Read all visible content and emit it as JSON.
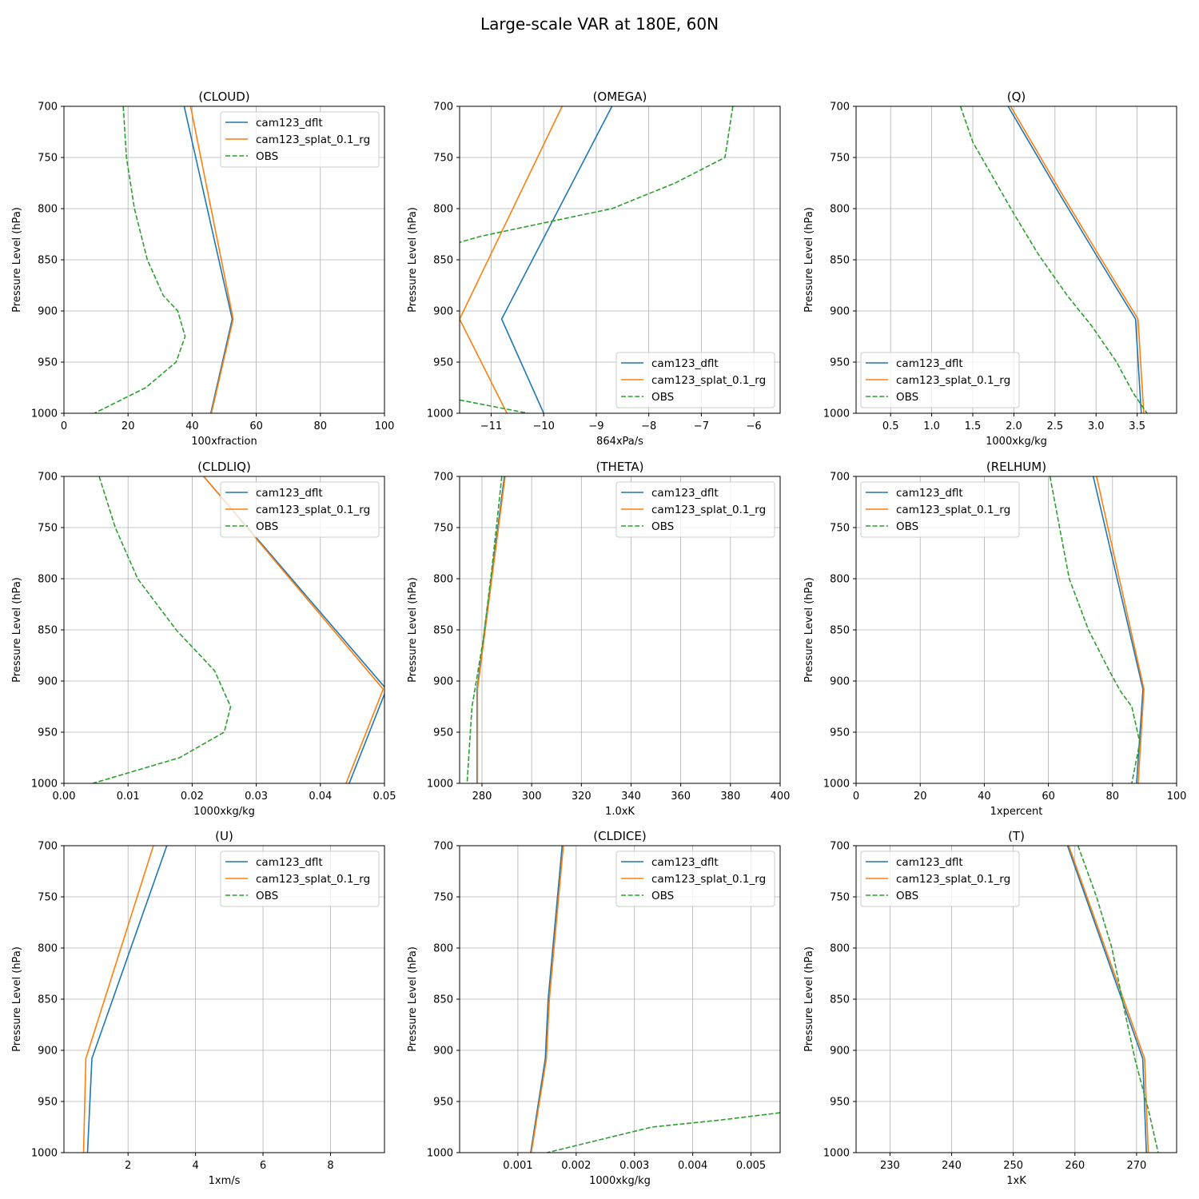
{
  "figure": {
    "title": "Large-scale VAR at 180E, 60N"
  },
  "colors": {
    "series0": "#1f77b4",
    "series1": "#ff7f0e",
    "series2": "#2ca02c",
    "grid": "#b0b0b0"
  },
  "chart_data": [
    {
      "type": "line",
      "title": "(CLOUD)",
      "xlabel": "100xfraction",
      "ylabel": "Pressure Level (hPa)",
      "xlim": [
        0,
        100
      ],
      "ylim": [
        1000,
        700
      ],
      "grid": true,
      "legend": "top-right",
      "xticks": [
        0,
        20,
        40,
        60,
        80,
        100
      ],
      "xtick_labels": [
        "0",
        "20",
        "40",
        "60",
        "80",
        "100"
      ],
      "yticks": [
        700,
        750,
        800,
        850,
        900,
        950,
        1000
      ],
      "ytick_labels": [
        "700",
        "750",
        "800",
        "850",
        "900",
        "950",
        "1000"
      ],
      "series": [
        {
          "name": "cam123_dflt",
          "style": "solid",
          "points": [
            [
              37.5,
              700
            ],
            [
              52.5,
              908
            ],
            [
              45.8,
              1000
            ]
          ]
        },
        {
          "name": "cam123_splat_0.1_rg",
          "style": "solid",
          "points": [
            [
              39.5,
              700
            ],
            [
              52.8,
              908
            ],
            [
              46.0,
              1000
            ]
          ]
        },
        {
          "name": "OBS",
          "style": "dashed",
          "points": [
            [
              18.5,
              700
            ],
            [
              19.5,
              750
            ],
            [
              22,
              800
            ],
            [
              26,
              850
            ],
            [
              31,
              885
            ],
            [
              35.5,
              900
            ],
            [
              37.8,
              925
            ],
            [
              35,
              950
            ],
            [
              25.5,
              975
            ],
            [
              9.5,
              1000
            ]
          ]
        }
      ]
    },
    {
      "type": "line",
      "title": "(OMEGA)",
      "xlabel": "864xPa/s",
      "ylabel": "Pressure Level (hPa)",
      "xlim": [
        -11.6,
        -5.5
      ],
      "ylim": [
        1000,
        700
      ],
      "grid": true,
      "legend": "bottom-right",
      "xticks": [
        -11,
        -10,
        -9,
        -8,
        -7,
        -6
      ],
      "xtick_labels": [
        "−11",
        "−10",
        "−9",
        "−8",
        "−7",
        "−6"
      ],
      "yticks": [
        700,
        750,
        800,
        850,
        900,
        950,
        1000
      ],
      "ytick_labels": [
        "700",
        "750",
        "800",
        "850",
        "900",
        "950",
        "1000"
      ],
      "series": [
        {
          "name": "cam123_dflt",
          "style": "solid",
          "points": [
            [
              -8.7,
              700
            ],
            [
              -10.8,
              908
            ],
            [
              -10.0,
              1000
            ]
          ]
        },
        {
          "name": "cam123_splat_0.1_rg",
          "style": "solid",
          "points": [
            [
              -9.65,
              700
            ],
            [
              -11.6,
              908
            ],
            [
              -10.7,
              1000
            ]
          ]
        },
        {
          "name": "OBS",
          "style": "dashed",
          "points": [
            [
              -6.4,
              700
            ],
            [
              -6.55,
              750
            ],
            [
              -7.5,
              775
            ],
            [
              -8.7,
              800
            ],
            [
              -10.0,
              814
            ],
            [
              -11.2,
              827
            ],
            [
              -11.6,
              833
            ]
          ]
        },
        {
          "name": "OBS",
          "style": "dashed",
          "points": [
            [
              -11.6,
              987
            ],
            [
              -10.3,
              1000
            ]
          ]
        }
      ]
    },
    {
      "type": "line",
      "title": "(Q)",
      "xlabel": "1000xkg/kg",
      "ylabel": "Pressure Level (hPa)",
      "xlim": [
        0.08,
        3.98
      ],
      "ylim": [
        1000,
        700
      ],
      "grid": true,
      "legend": "bottom-left",
      "xticks": [
        0.5,
        1.0,
        1.5,
        2.0,
        2.5,
        3.0,
        3.5
      ],
      "xtick_labels": [
        "0.5",
        "1.0",
        "1.5",
        "2.0",
        "2.5",
        "3.0",
        "3.5"
      ],
      "yticks": [
        700,
        750,
        800,
        850,
        900,
        950,
        1000
      ],
      "ytick_labels": [
        "700",
        "750",
        "800",
        "850",
        "900",
        "950",
        "1000"
      ],
      "series": [
        {
          "name": "cam123_dflt",
          "style": "solid",
          "points": [
            [
              1.93,
              700
            ],
            [
              2.55,
              785
            ],
            [
              3.0,
              845
            ],
            [
              3.48,
              908
            ],
            [
              3.55,
              1000
            ]
          ]
        },
        {
          "name": "cam123_splat_0.1_rg",
          "style": "solid",
          "points": [
            [
              1.96,
              700
            ],
            [
              2.58,
              785
            ],
            [
              3.03,
              845
            ],
            [
              3.51,
              908
            ],
            [
              3.58,
              1000
            ]
          ]
        },
        {
          "name": "OBS",
          "style": "dashed",
          "points": [
            [
              1.35,
              700
            ],
            [
              1.5,
              735
            ],
            [
              1.75,
              770
            ],
            [
              2.0,
              805
            ],
            [
              2.3,
              845
            ],
            [
              2.65,
              885
            ],
            [
              2.95,
              915
            ],
            [
              3.25,
              950
            ],
            [
              3.45,
              980
            ],
            [
              3.62,
              1000
            ]
          ]
        }
      ]
    },
    {
      "type": "line",
      "title": "(CLDLIQ)",
      "xlabel": "1000xkg/kg",
      "ylabel": "Pressure Level (hPa)",
      "xlim": [
        0,
        0.05
      ],
      "ylim": [
        1000,
        700
      ],
      "grid": true,
      "legend": "top-right",
      "xticks": [
        0,
        0.01,
        0.02,
        0.03,
        0.04,
        0.05
      ],
      "xtick_labels": [
        "0.00",
        "0.01",
        "0.02",
        "0.03",
        "0.04",
        "0.05"
      ],
      "yticks": [
        700,
        750,
        800,
        850,
        900,
        950,
        1000
      ],
      "ytick_labels": [
        "700",
        "750",
        "800",
        "850",
        "900",
        "950",
        "1000"
      ],
      "series": [
        {
          "name": "cam123_dflt",
          "style": "solid",
          "points": [
            [
              0.0218,
              700
            ],
            [
              0.0503,
              908
            ],
            [
              0.0445,
              1000
            ]
          ]
        },
        {
          "name": "cam123_splat_0.1_rg",
          "style": "solid",
          "points": [
            [
              0.0218,
              700
            ],
            [
              0.0498,
              908
            ],
            [
              0.044,
              1000
            ]
          ]
        },
        {
          "name": "OBS",
          "style": "dashed",
          "points": [
            [
              0.0055,
              700
            ],
            [
              0.008,
              750
            ],
            [
              0.0115,
              800
            ],
            [
              0.0175,
              850
            ],
            [
              0.0235,
              890
            ],
            [
              0.026,
              925
            ],
            [
              0.025,
              950
            ],
            [
              0.018,
              975
            ],
            [
              0.0045,
              1000
            ]
          ]
        }
      ]
    },
    {
      "type": "line",
      "title": "(THETA)",
      "xlabel": "1.0xK",
      "ylabel": "Pressure Level (hPa)",
      "xlim": [
        271,
        400
      ],
      "ylim": [
        1000,
        700
      ],
      "grid": true,
      "legend": "top-right",
      "xticks": [
        280,
        300,
        320,
        340,
        360,
        380,
        400
      ],
      "xtick_labels": [
        "280",
        "300",
        "320",
        "340",
        "360",
        "380",
        "400"
      ],
      "yticks": [
        700,
        750,
        800,
        850,
        900,
        950,
        1000
      ],
      "ytick_labels": [
        "700",
        "750",
        "800",
        "850",
        "900",
        "950",
        "1000"
      ],
      "series": [
        {
          "name": "cam123_dflt",
          "style": "solid",
          "points": [
            [
              289,
              700
            ],
            [
              278,
              908
            ],
            [
              278,
              1000
            ]
          ]
        },
        {
          "name": "cam123_splat_0.1_rg",
          "style": "solid",
          "points": [
            [
              289.3,
              700
            ],
            [
              278.2,
              908
            ],
            [
              278.2,
              1000
            ]
          ]
        },
        {
          "name": "OBS",
          "style": "dashed",
          "points": [
            [
              288,
              700
            ],
            [
              284,
              790
            ],
            [
              280.5,
              860
            ],
            [
              276,
              925
            ],
            [
              274,
              1000
            ]
          ]
        }
      ]
    },
    {
      "type": "line",
      "title": "(RELHUM)",
      "xlabel": "1xpercent",
      "ylabel": "Pressure Level (hPa)",
      "xlim": [
        0,
        100
      ],
      "ylim": [
        1000,
        700
      ],
      "grid": true,
      "legend": "top-left",
      "xticks": [
        0,
        20,
        40,
        60,
        80,
        100
      ],
      "xtick_labels": [
        "0",
        "20",
        "40",
        "60",
        "80",
        "100"
      ],
      "yticks": [
        700,
        750,
        800,
        850,
        900,
        950,
        1000
      ],
      "ytick_labels": [
        "700",
        "750",
        "800",
        "850",
        "900",
        "950",
        "1000"
      ],
      "series": [
        {
          "name": "cam123_dflt",
          "style": "solid",
          "points": [
            [
              74,
              700
            ],
            [
              89.5,
              908
            ],
            [
              87.5,
              1000
            ]
          ]
        },
        {
          "name": "cam123_splat_0.1_rg",
          "style": "solid",
          "points": [
            [
              75,
              700
            ],
            [
              89.8,
              908
            ],
            [
              88,
              1000
            ]
          ]
        },
        {
          "name": "OBS",
          "style": "dashed",
          "points": [
            [
              60.5,
              700
            ],
            [
              63.5,
              750
            ],
            [
              66.5,
              800
            ],
            [
              72.5,
              850
            ],
            [
              79,
              890
            ],
            [
              82.5,
              910
            ],
            [
              86,
              925
            ],
            [
              88.5,
              960
            ],
            [
              86,
              1000
            ]
          ]
        }
      ]
    },
    {
      "type": "line",
      "title": "(U)",
      "xlabel": "1xm/s",
      "ylabel": "Pressure Level (hPa)",
      "xlim": [
        0.1,
        9.6
      ],
      "ylim": [
        1000,
        700
      ],
      "grid": true,
      "legend": "top-right",
      "xticks": [
        2,
        4,
        6,
        8
      ],
      "xtick_labels": [
        "2",
        "4",
        "6",
        "8"
      ],
      "yticks": [
        700,
        750,
        800,
        850,
        900,
        950,
        1000
      ],
      "ytick_labels": [
        "700",
        "750",
        "800",
        "850",
        "900",
        "950",
        "1000"
      ],
      "series": [
        {
          "name": "cam123_dflt",
          "style": "solid",
          "points": [
            [
              3.15,
              700
            ],
            [
              0.93,
              908
            ],
            [
              0.8,
              1000
            ]
          ]
        },
        {
          "name": "cam123_splat_0.1_rg",
          "style": "solid",
          "points": [
            [
              2.75,
              700
            ],
            [
              0.75,
              908
            ],
            [
              0.68,
              1000
            ]
          ]
        },
        {
          "name": "OBS",
          "style": "dashed",
          "points": []
        }
      ]
    },
    {
      "type": "line",
      "title": "(CLDICE)",
      "xlabel": "1000xkg/kg",
      "ylabel": "Pressure Level (hPa)",
      "xlim": [
        0.0,
        0.0055
      ],
      "ylim": [
        1000,
        700
      ],
      "grid": true,
      "legend": "top-right",
      "xticks": [
        0.001,
        0.002,
        0.003,
        0.004,
        0.005
      ],
      "xtick_labels": [
        "0.001",
        "0.002",
        "0.003",
        "0.004",
        "0.005"
      ],
      "yticks": [
        700,
        750,
        800,
        850,
        900,
        950,
        1000
      ],
      "ytick_labels": [
        "700",
        "750",
        "800",
        "850",
        "900",
        "950",
        "1000"
      ],
      "series": [
        {
          "name": "cam123_dflt",
          "style": "solid",
          "points": [
            [
              0.00176,
              700
            ],
            [
              0.00152,
              850
            ],
            [
              0.00147,
              908
            ],
            [
              0.00122,
              1000
            ]
          ]
        },
        {
          "name": "cam123_splat_0.1_rg",
          "style": "solid",
          "points": [
            [
              0.00178,
              700
            ],
            [
              0.00154,
              850
            ],
            [
              0.00149,
              908
            ],
            [
              0.00123,
              1000
            ]
          ]
        },
        {
          "name": "OBS",
          "style": "dashed",
          "points": [
            [
              0.0055,
              961
            ],
            [
              0.0045,
              968
            ],
            [
              0.0033,
              975
            ],
            [
              0.0015,
              1000
            ]
          ]
        }
      ]
    },
    {
      "type": "line",
      "title": "(T)",
      "xlabel": "1xK",
      "ylabel": "Pressure Level (hPa)",
      "xlim": [
        224.5,
        276.5
      ],
      "ylim": [
        1000,
        700
      ],
      "grid": true,
      "legend": "top-left",
      "xticks": [
        230,
        240,
        250,
        260,
        270
      ],
      "xtick_labels": [
        "230",
        "240",
        "250",
        "260",
        "270"
      ],
      "yticks": [
        700,
        750,
        800,
        850,
        900,
        950,
        1000
      ],
      "ytick_labels": [
        "700",
        "750",
        "800",
        "850",
        "900",
        "950",
        "1000"
      ],
      "series": [
        {
          "name": "cam123_dflt",
          "style": "solid",
          "points": [
            [
              258.8,
              700
            ],
            [
              271,
              908
            ],
            [
              271.6,
              1000
            ]
          ]
        },
        {
          "name": "cam123_splat_0.1_rg",
          "style": "solid",
          "points": [
            [
              259,
              700
            ],
            [
              271.3,
              908
            ],
            [
              271.9,
              1000
            ]
          ]
        },
        {
          "name": "OBS",
          "style": "dashed",
          "points": [
            [
              260.5,
              700
            ],
            [
              263.5,
              750
            ],
            [
              266,
              800
            ],
            [
              268,
              860
            ],
            [
              269.8,
              910
            ],
            [
              272,
              960
            ],
            [
              273.5,
              1000
            ]
          ]
        }
      ]
    }
  ]
}
